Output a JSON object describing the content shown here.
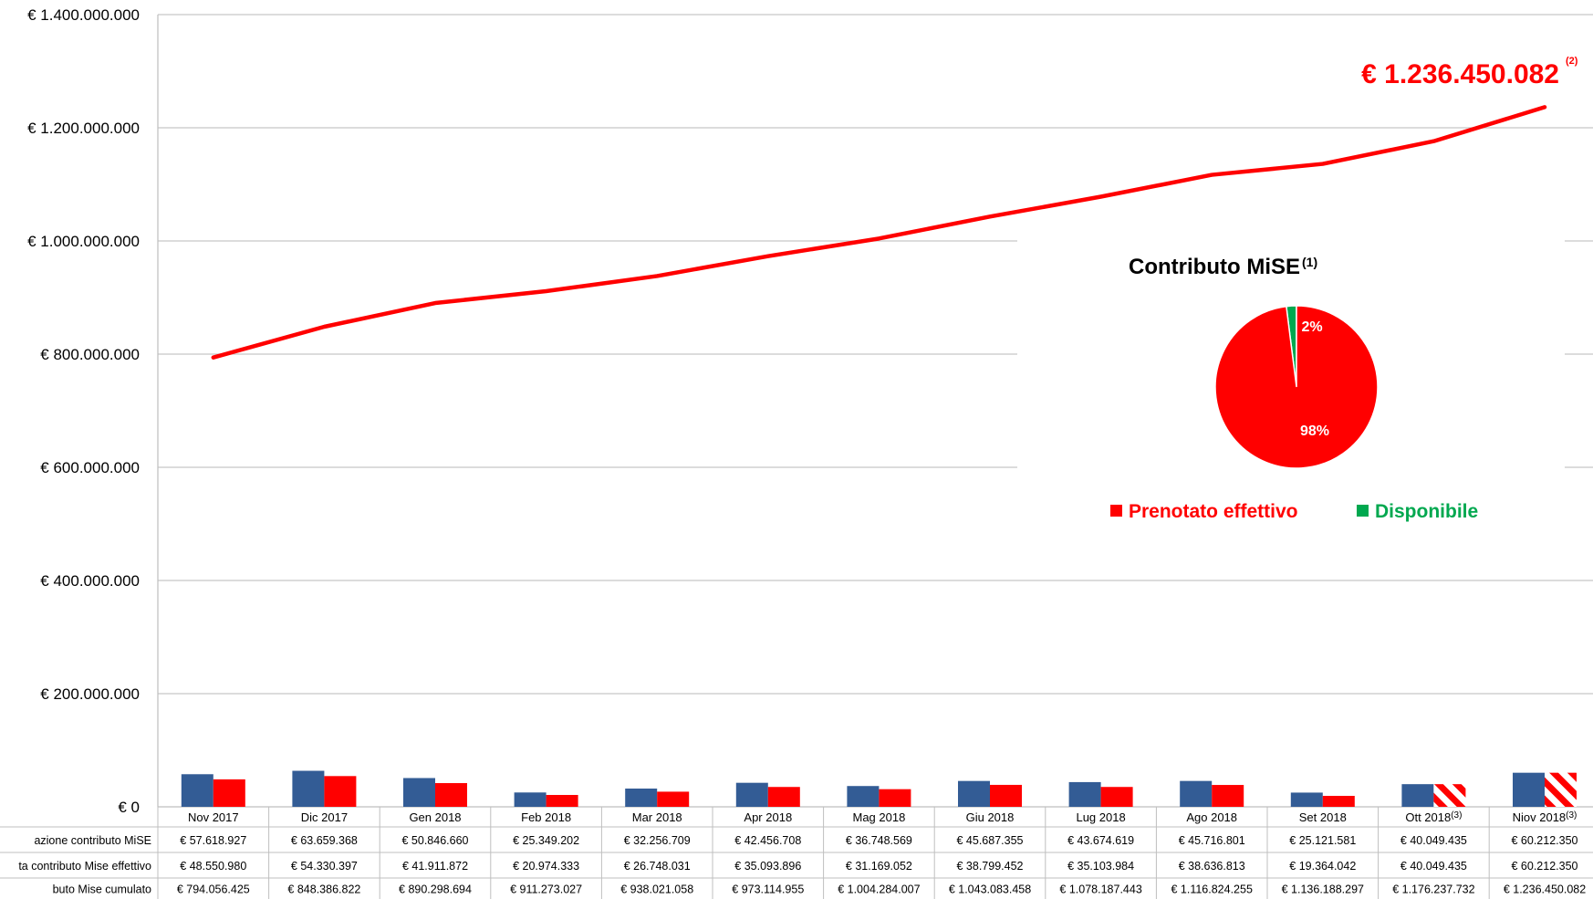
{
  "colors": {
    "line": "#ff0000",
    "bar_allocation": "#335c95",
    "bar_booked": "#ff0000",
    "pie_booked": "#ff0000",
    "pie_available": "#00a84f",
    "grid": "#c8c8c8"
  },
  "chart_data": {
    "type": "bar+line",
    "categories": [
      "Nov 2017",
      "Dic 2017",
      "Gen 2018",
      "Feb 2018",
      "Mar 2018",
      "Apr 2018",
      "Mag 2018",
      "Giu 2018",
      "Lug 2018",
      "Ago 2018",
      "Set 2018",
      "Ott 2018",
      "Niov 2018"
    ],
    "category_notes": [
      "",
      "",
      "",
      "",
      "",
      "",
      "",
      "",
      "",
      "",
      "",
      "(3)",
      "(3)"
    ],
    "hatched_booked_indices": [
      11,
      12
    ],
    "ylim": [
      0,
      1400000000
    ],
    "yticks": [
      {
        "value": 0,
        "label": "€ 0"
      },
      {
        "value": 200000000,
        "label": "€ 200.000.000"
      },
      {
        "value": 400000000,
        "label": "€ 400.000.000"
      },
      {
        "value": 600000000,
        "label": "€ 600.000.000"
      },
      {
        "value": 800000000,
        "label": "€ 800.000.000"
      },
      {
        "value": 1000000000,
        "label": "€ 1.000.000.000"
      },
      {
        "value": 1200000000,
        "label": "€ 1.200.000.000"
      },
      {
        "value": 1400000000,
        "label": "€ 1.400.000.000"
      }
    ],
    "grid": true,
    "series": [
      {
        "name": "azione contributo MiSE",
        "kind": "bar",
        "values": [
          57618927,
          63659368,
          50846660,
          25349202,
          32256709,
          42456708,
          36748569,
          45687355,
          43674619,
          45716801,
          25121581,
          40049435,
          60212350
        ],
        "labels": [
          "€ 57.618.927",
          "€ 63.659.368",
          "€ 50.846.660",
          "€ 25.349.202",
          "€ 32.256.709",
          "€ 42.456.708",
          "€ 36.748.569",
          "€ 45.687.355",
          "€ 43.674.619",
          "€ 45.716.801",
          "€ 25.121.581",
          "€ 40.049.435",
          "€ 60.212.350"
        ]
      },
      {
        "name": "ta contributo Mise effettivo",
        "kind": "bar",
        "values": [
          48550980,
          54330397,
          41911872,
          20974333,
          26748031,
          35093896,
          31169052,
          38799452,
          35103984,
          38636813,
          19364042,
          40049435,
          60212350
        ],
        "labels": [
          "€ 48.550.980",
          "€ 54.330.397",
          "€ 41.911.872",
          "€ 20.974.333",
          "€ 26.748.031",
          "€ 35.093.896",
          "€ 31.169.052",
          "€ 38.799.452",
          "€ 35.103.984",
          "€ 38.636.813",
          "€ 19.364.042",
          "€ 40.049.435",
          "€ 60.212.350"
        ]
      },
      {
        "name": "buto Mise cumulato",
        "kind": "line",
        "values": [
          794056425,
          848386822,
          890298694,
          911273027,
          938021058,
          973114955,
          1004284007,
          1043083458,
          1078187443,
          1116824255,
          1136188297,
          1176237732,
          1236450082
        ],
        "labels": [
          "€ 794.056.425",
          "€ 848.386.822",
          "€ 890.298.694",
          "€ 911.273.027",
          "€ 938.021.058",
          "€ 973.114.955",
          "€ 1.004.284.007",
          "€ 1.043.083.458",
          "€ 1.078.187.443",
          "€ 1.116.824.255",
          "€ 1.136.188.297",
          "€ 1.176.237.732",
          "€ 1.236.450.082"
        ]
      }
    ],
    "final_annotation": {
      "text": "€ 1.236.450.082",
      "note": "(2)"
    },
    "pie": {
      "title": "Contributo MiSE",
      "title_note": "(1)",
      "slices": [
        {
          "name": "Prenotato effettivo",
          "value": 98,
          "label": "98%"
        },
        {
          "name": "Disponibile",
          "value": 2,
          "label": "2%"
        }
      ]
    }
  }
}
